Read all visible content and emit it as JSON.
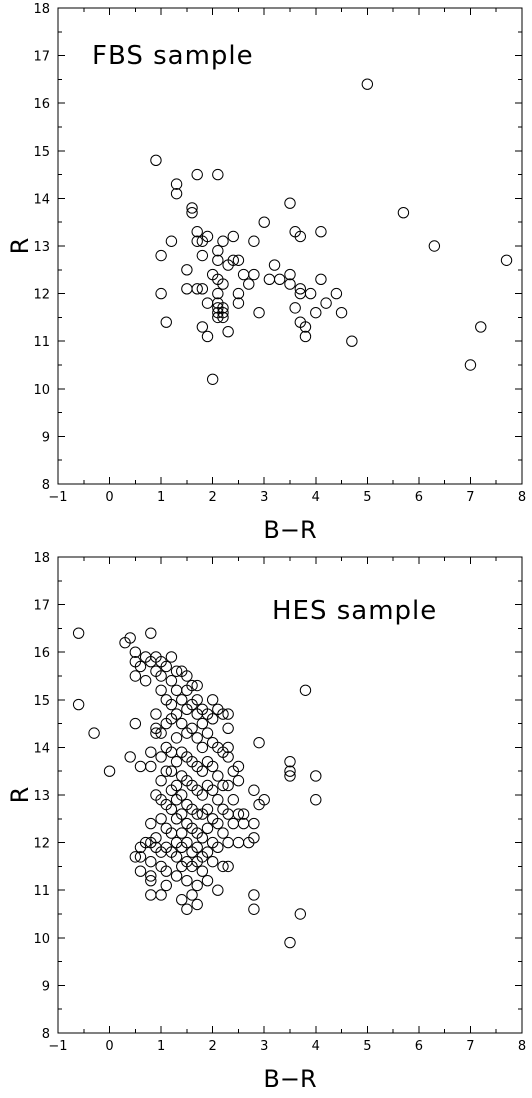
{
  "chart_data": [
    {
      "type": "scatter",
      "title": "FBS sample",
      "xlabel": "B−R",
      "ylabel": "R",
      "xlim": [
        -1,
        8
      ],
      "ylim": [
        8,
        18
      ],
      "xticks": [
        "−1",
        "0",
        "1",
        "2",
        "3",
        "4",
        "5",
        "6",
        "7",
        "8"
      ],
      "yticks": [
        "8",
        "9",
        "10",
        "11",
        "12",
        "13",
        "14",
        "15",
        "16",
        "17",
        "18"
      ],
      "marker": "open-circle",
      "grid": false,
      "points": [
        [
          0.9,
          14.8
        ],
        [
          1.0,
          12.8
        ],
        [
          1.0,
          12.0
        ],
        [
          1.1,
          11.4
        ],
        [
          1.2,
          13.1
        ],
        [
          1.3,
          14.3
        ],
        [
          1.3,
          14.1
        ],
        [
          1.5,
          12.5
        ],
        [
          1.5,
          12.1
        ],
        [
          1.6,
          13.8
        ],
        [
          1.6,
          13.7
        ],
        [
          1.7,
          14.5
        ],
        [
          1.7,
          13.3
        ],
        [
          1.7,
          13.1
        ],
        [
          1.7,
          12.1
        ],
        [
          1.8,
          13.1
        ],
        [
          1.8,
          12.8
        ],
        [
          1.8,
          12.1
        ],
        [
          1.8,
          11.3
        ],
        [
          1.9,
          13.2
        ],
        [
          1.9,
          11.8
        ],
        [
          1.9,
          11.1
        ],
        [
          2.0,
          12.4
        ],
        [
          2.0,
          10.2
        ],
        [
          2.1,
          14.5
        ],
        [
          2.1,
          12.9
        ],
        [
          2.1,
          12.7
        ],
        [
          2.1,
          12.3
        ],
        [
          2.1,
          12.0
        ],
        [
          2.1,
          11.8
        ],
        [
          2.1,
          11.7
        ],
        [
          2.1,
          11.6
        ],
        [
          2.1,
          11.5
        ],
        [
          2.2,
          13.1
        ],
        [
          2.2,
          12.2
        ],
        [
          2.2,
          11.7
        ],
        [
          2.2,
          11.6
        ],
        [
          2.2,
          11.5
        ],
        [
          2.3,
          12.6
        ],
        [
          2.3,
          11.2
        ],
        [
          2.4,
          13.2
        ],
        [
          2.4,
          12.7
        ],
        [
          2.5,
          12.7
        ],
        [
          2.5,
          12.0
        ],
        [
          2.5,
          11.8
        ],
        [
          2.6,
          12.4
        ],
        [
          2.7,
          12.2
        ],
        [
          2.8,
          13.1
        ],
        [
          2.8,
          12.4
        ],
        [
          2.9,
          11.6
        ],
        [
          3.0,
          13.5
        ],
        [
          3.1,
          12.3
        ],
        [
          3.2,
          12.6
        ],
        [
          3.3,
          12.3
        ],
        [
          3.5,
          13.9
        ],
        [
          3.5,
          12.4
        ],
        [
          3.5,
          12.2
        ],
        [
          3.6,
          13.3
        ],
        [
          3.6,
          11.7
        ],
        [
          3.7,
          13.2
        ],
        [
          3.7,
          12.1
        ],
        [
          3.7,
          11.4
        ],
        [
          3.7,
          12.0
        ],
        [
          3.8,
          11.3
        ],
        [
          3.8,
          11.1
        ],
        [
          3.9,
          12.0
        ],
        [
          4.0,
          11.6
        ],
        [
          4.1,
          13.3
        ],
        [
          4.1,
          12.3
        ],
        [
          4.2,
          11.8
        ],
        [
          4.4,
          12.0
        ],
        [
          4.5,
          11.6
        ],
        [
          4.7,
          11.0
        ],
        [
          5.0,
          16.4
        ],
        [
          5.7,
          13.7
        ],
        [
          6.3,
          13.0
        ],
        [
          7.0,
          10.5
        ],
        [
          7.2,
          11.3
        ],
        [
          7.7,
          12.7
        ]
      ]
    },
    {
      "type": "scatter",
      "title": "HES sample",
      "xlabel": "B−R",
      "ylabel": "R",
      "xlim": [
        -1,
        8
      ],
      "ylim": [
        8,
        18
      ],
      "xticks": [
        "−1",
        "0",
        "1",
        "2",
        "3",
        "4",
        "5",
        "6",
        "7",
        "8"
      ],
      "yticks": [
        "8",
        "9",
        "10",
        "11",
        "12",
        "13",
        "14",
        "15",
        "16",
        "17",
        "18"
      ],
      "marker": "open-circle",
      "grid": false,
      "points": [
        [
          -0.6,
          16.4
        ],
        [
          -0.6,
          14.9
        ],
        [
          -0.3,
          14.3
        ],
        [
          0.0,
          13.5
        ],
        [
          0.3,
          16.2
        ],
        [
          0.4,
          16.3
        ],
        [
          0.4,
          13.8
        ],
        [
          0.5,
          16.0
        ],
        [
          0.5,
          15.8
        ],
        [
          0.5,
          15.5
        ],
        [
          0.5,
          14.5
        ],
        [
          0.5,
          11.7
        ],
        [
          0.6,
          15.7
        ],
        [
          0.6,
          13.6
        ],
        [
          0.6,
          11.9
        ],
        [
          0.6,
          11.7
        ],
        [
          0.6,
          11.4
        ],
        [
          0.7,
          15.9
        ],
        [
          0.7,
          15.4
        ],
        [
          0.7,
          12.0
        ],
        [
          0.8,
          16.4
        ],
        [
          0.8,
          15.8
        ],
        [
          0.8,
          13.9
        ],
        [
          0.8,
          13.6
        ],
        [
          0.8,
          12.4
        ],
        [
          0.8,
          12.0
        ],
        [
          0.8,
          11.6
        ],
        [
          0.8,
          11.3
        ],
        [
          0.8,
          11.2
        ],
        [
          0.8,
          10.9
        ],
        [
          0.9,
          15.9
        ],
        [
          0.9,
          15.6
        ],
        [
          0.9,
          14.7
        ],
        [
          0.9,
          14.4
        ],
        [
          0.9,
          14.3
        ],
        [
          0.9,
          13.0
        ],
        [
          0.9,
          12.1
        ],
        [
          0.9,
          11.9
        ],
        [
          1.0,
          15.8
        ],
        [
          1.0,
          15.5
        ],
        [
          1.0,
          15.2
        ],
        [
          1.0,
          14.3
        ],
        [
          1.0,
          13.8
        ],
        [
          1.0,
          13.3
        ],
        [
          1.0,
          12.9
        ],
        [
          1.0,
          12.5
        ],
        [
          1.0,
          11.8
        ],
        [
          1.0,
          11.5
        ],
        [
          1.0,
          10.9
        ],
        [
          1.1,
          15.7
        ],
        [
          1.1,
          15.0
        ],
        [
          1.1,
          14.5
        ],
        [
          1.1,
          14.0
        ],
        [
          1.1,
          13.5
        ],
        [
          1.1,
          12.8
        ],
        [
          1.1,
          12.3
        ],
        [
          1.1,
          11.9
        ],
        [
          1.1,
          11.4
        ],
        [
          1.1,
          11.1
        ],
        [
          1.2,
          15.9
        ],
        [
          1.2,
          15.4
        ],
        [
          1.2,
          14.9
        ],
        [
          1.2,
          14.6
        ],
        [
          1.2,
          13.9
        ],
        [
          1.2,
          13.5
        ],
        [
          1.2,
          13.1
        ],
        [
          1.2,
          12.7
        ],
        [
          1.2,
          12.2
        ],
        [
          1.2,
          11.8
        ],
        [
          1.3,
          15.6
        ],
        [
          1.3,
          15.2
        ],
        [
          1.3,
          14.7
        ],
        [
          1.3,
          14.2
        ],
        [
          1.3,
          13.7
        ],
        [
          1.3,
          13.2
        ],
        [
          1.3,
          12.9
        ],
        [
          1.3,
          12.5
        ],
        [
          1.3,
          12.0
        ],
        [
          1.3,
          11.7
        ],
        [
          1.3,
          11.3
        ],
        [
          1.4,
          15.6
        ],
        [
          1.4,
          15.0
        ],
        [
          1.4,
          14.5
        ],
        [
          1.4,
          13.9
        ],
        [
          1.4,
          13.4
        ],
        [
          1.4,
          13.0
        ],
        [
          1.4,
          12.6
        ],
        [
          1.4,
          12.2
        ],
        [
          1.4,
          11.9
        ],
        [
          1.4,
          11.5
        ],
        [
          1.4,
          10.8
        ],
        [
          1.5,
          15.5
        ],
        [
          1.5,
          15.2
        ],
        [
          1.5,
          14.8
        ],
        [
          1.5,
          14.3
        ],
        [
          1.5,
          13.8
        ],
        [
          1.5,
          13.3
        ],
        [
          1.5,
          12.8
        ],
        [
          1.5,
          12.4
        ],
        [
          1.5,
          12.0
        ],
        [
          1.5,
          11.6
        ],
        [
          1.5,
          11.2
        ],
        [
          1.5,
          10.6
        ],
        [
          1.6,
          15.3
        ],
        [
          1.6,
          14.9
        ],
        [
          1.6,
          14.4
        ],
        [
          1.6,
          13.7
        ],
        [
          1.6,
          13.2
        ],
        [
          1.6,
          12.7
        ],
        [
          1.6,
          12.3
        ],
        [
          1.6,
          11.8
        ],
        [
          1.6,
          11.5
        ],
        [
          1.6,
          10.9
        ],
        [
          1.7,
          15.3
        ],
        [
          1.7,
          15.0
        ],
        [
          1.7,
          14.7
        ],
        [
          1.7,
          14.2
        ],
        [
          1.7,
          13.6
        ],
        [
          1.7,
          13.1
        ],
        [
          1.7,
          12.6
        ],
        [
          1.7,
          12.2
        ],
        [
          1.7,
          11.9
        ],
        [
          1.7,
          11.6
        ],
        [
          1.7,
          11.1
        ],
        [
          1.7,
          10.7
        ],
        [
          1.8,
          14.8
        ],
        [
          1.8,
          14.5
        ],
        [
          1.8,
          14.0
        ],
        [
          1.8,
          13.5
        ],
        [
          1.8,
          13.0
        ],
        [
          1.8,
          12.6
        ],
        [
          1.8,
          12.1
        ],
        [
          1.8,
          11.7
        ],
        [
          1.8,
          11.4
        ],
        [
          1.9,
          14.7
        ],
        [
          1.9,
          14.3
        ],
        [
          1.9,
          13.7
        ],
        [
          1.9,
          13.2
        ],
        [
          1.9,
          12.7
        ],
        [
          1.9,
          12.3
        ],
        [
          1.9,
          11.8
        ],
        [
          1.9,
          11.2
        ],
        [
          2.0,
          15.0
        ],
        [
          2.0,
          14.6
        ],
        [
          2.0,
          14.1
        ],
        [
          2.0,
          13.6
        ],
        [
          2.0,
          13.1
        ],
        [
          2.0,
          12.5
        ],
        [
          2.0,
          12.0
        ],
        [
          2.0,
          11.6
        ],
        [
          2.1,
          14.8
        ],
        [
          2.1,
          14.0
        ],
        [
          2.1,
          13.4
        ],
        [
          2.1,
          12.9
        ],
        [
          2.1,
          12.4
        ],
        [
          2.1,
          11.9
        ],
        [
          2.1,
          11.0
        ],
        [
          2.2,
          14.7
        ],
        [
          2.2,
          13.9
        ],
        [
          2.2,
          13.2
        ],
        [
          2.2,
          12.7
        ],
        [
          2.2,
          12.2
        ],
        [
          2.2,
          11.5
        ],
        [
          2.3,
          14.7
        ],
        [
          2.3,
          14.4
        ],
        [
          2.3,
          14.0
        ],
        [
          2.3,
          13.8
        ],
        [
          2.3,
          13.2
        ],
        [
          2.3,
          12.6
        ],
        [
          2.3,
          12.0
        ],
        [
          2.3,
          11.5
        ],
        [
          2.4,
          13.5
        ],
        [
          2.4,
          12.9
        ],
        [
          2.4,
          12.4
        ],
        [
          2.5,
          13.6
        ],
        [
          2.5,
          13.3
        ],
        [
          2.5,
          12.6
        ],
        [
          2.5,
          12.0
        ],
        [
          2.6,
          12.6
        ],
        [
          2.6,
          12.4
        ],
        [
          2.7,
          12.0
        ],
        [
          2.8,
          13.1
        ],
        [
          2.8,
          12.4
        ],
        [
          2.8,
          12.1
        ],
        [
          2.8,
          10.9
        ],
        [
          2.8,
          10.6
        ],
        [
          2.9,
          14.1
        ],
        [
          2.9,
          12.8
        ],
        [
          3.0,
          12.9
        ],
        [
          3.5,
          13.7
        ],
        [
          3.5,
          13.5
        ],
        [
          3.5,
          13.4
        ],
        [
          3.5,
          9.9
        ],
        [
          3.7,
          10.5
        ],
        [
          3.8,
          15.2
        ],
        [
          4.0,
          13.4
        ],
        [
          4.0,
          12.9
        ]
      ]
    }
  ]
}
